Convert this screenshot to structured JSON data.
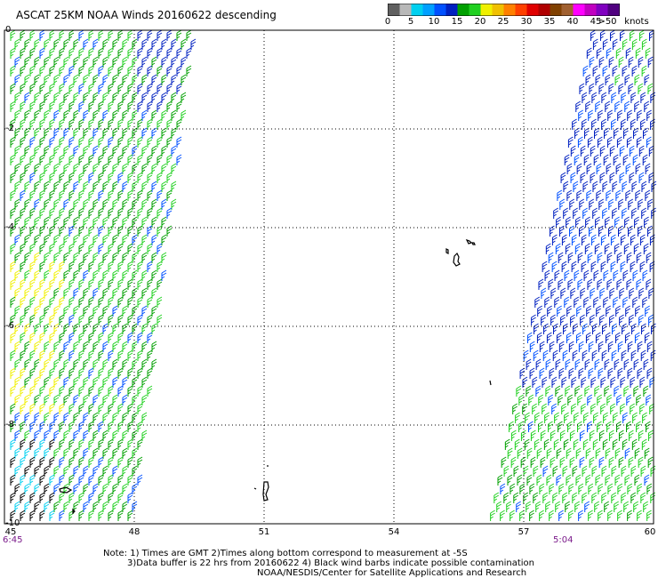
{
  "header": {
    "title": "ASCAT 25KM NOAA Winds 20160622 descending"
  },
  "legend": {
    "unit_suffix": "knots",
    "bins": [
      {
        "label": "0",
        "color": "#606060"
      },
      {
        "label": "",
        "color": "#b8b8b8"
      },
      {
        "label": "5",
        "color": "#00d0f0"
      },
      {
        "label": "",
        "color": "#00a0ff"
      },
      {
        "label": "10",
        "color": "#0050ff"
      },
      {
        "label": "",
        "color": "#0020c0"
      },
      {
        "label": "15",
        "color": "#00a000"
      },
      {
        "label": "",
        "color": "#20d020"
      },
      {
        "label": "20",
        "color": "#f0f000"
      },
      {
        "label": "",
        "color": "#f0c000"
      },
      {
        "label": "25",
        "color": "#ff8000"
      },
      {
        "label": "",
        "color": "#ff4000"
      },
      {
        "label": "30",
        "color": "#e00000"
      },
      {
        "label": "",
        "color": "#b00000"
      },
      {
        "label": "35",
        "color": "#804000"
      },
      {
        "label": "",
        "color": "#a06030"
      },
      {
        "label": "40",
        "color": "#ff00ff"
      },
      {
        "label": "",
        "color": "#c000c0"
      },
      {
        "label": "45",
        "color": "#8000c0"
      },
      {
        "label": ">50",
        "color": "#500080"
      }
    ]
  },
  "map": {
    "x_ticks": [
      "45",
      "48",
      "51",
      "54",
      "57",
      "60"
    ],
    "y_ticks": [
      "0",
      "-2",
      "-4",
      "-6",
      "-8",
      "-10"
    ],
    "times": {
      "left": "6:45",
      "right": "5:04"
    }
  },
  "notes": {
    "line1": "Note: 1) Times are GMT 2)Times along bottom correspond to measurement at -5S",
    "line2": "3)Data buffer is 22 hrs from 20160622 4) Black wind barbs indicate possible contamination",
    "line3": "NOAA/NESDIS/Center for Satellite Applications and Research"
  }
}
